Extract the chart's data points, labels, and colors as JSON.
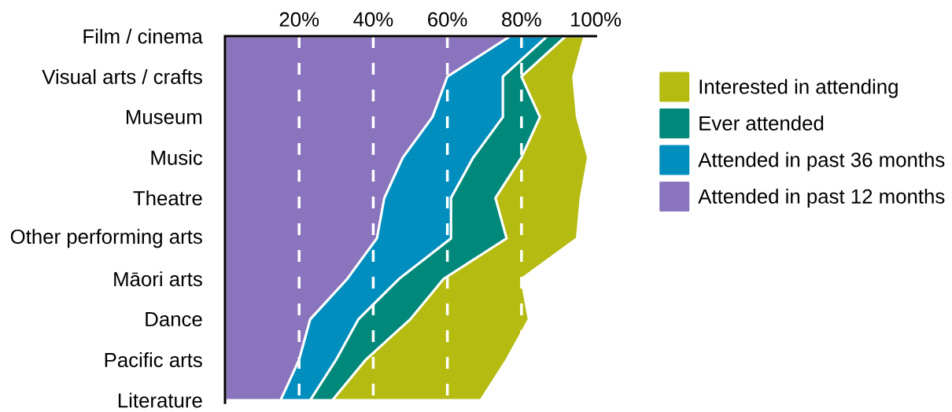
{
  "chart_data": {
    "type": "area",
    "stacked": true,
    "orientation": "horizontal",
    "categories": [
      "Film / cinema",
      "Visual arts / crafts",
      "Museum",
      "Music",
      "Theatre",
      "Other performing arts",
      "Māori arts",
      "Dance",
      "Pacific arts",
      "Literature"
    ],
    "series": [
      {
        "name": "Attended in past 12 months",
        "color": "#8974bd",
        "values": [
          77,
          60,
          56,
          48,
          43,
          41,
          33,
          23,
          20,
          15
        ]
      },
      {
        "name": "Attended in past 36 months",
        "color": "#008ebf",
        "values": [
          10,
          15,
          19,
          19,
          18,
          20,
          14,
          13,
          10,
          8
        ]
      },
      {
        "name": "Ever attended",
        "color": "#00897a",
        "values": [
          5,
          5,
          10,
          13,
          12,
          15,
          12,
          14,
          8,
          6
        ]
      },
      {
        "name": "Interested in attending",
        "color": "#b5bb11",
        "values": [
          5,
          14,
          10,
          18,
          23,
          19,
          21,
          32,
          38,
          40
        ]
      }
    ],
    "xlim": [
      0,
      100
    ],
    "xticks": [
      {
        "value": 20,
        "label": "20%"
      },
      {
        "value": 40,
        "label": "40%"
      },
      {
        "value": 60,
        "label": "60%"
      },
      {
        "value": 80,
        "label": "80%"
      },
      {
        "value": 100,
        "label": "100%"
      }
    ],
    "grid": "x",
    "legend": "right"
  }
}
